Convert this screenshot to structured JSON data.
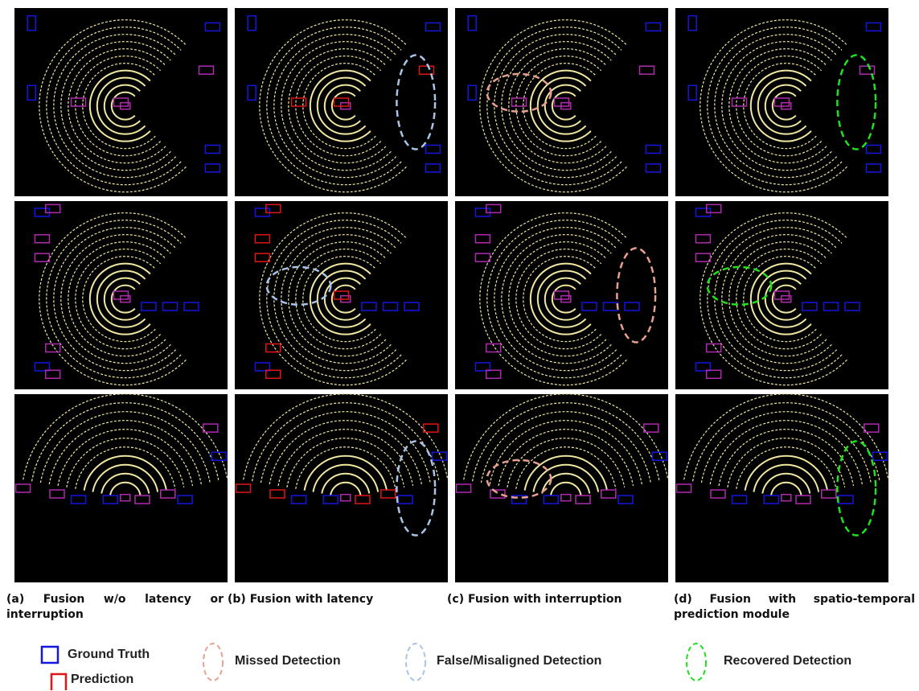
{
  "captions": [
    "(a) Fusion w/o latency or interruption",
    "(b) Fusion with latency",
    "(c) Fusion with interruption",
    "(d) Fusion with spatio-temporal prediction module"
  ],
  "legend": [
    "Ground Truth",
    "Prediction",
    "Missed Detection",
    "False/Misaligned Detection",
    "Recovered Detection"
  ]
}
